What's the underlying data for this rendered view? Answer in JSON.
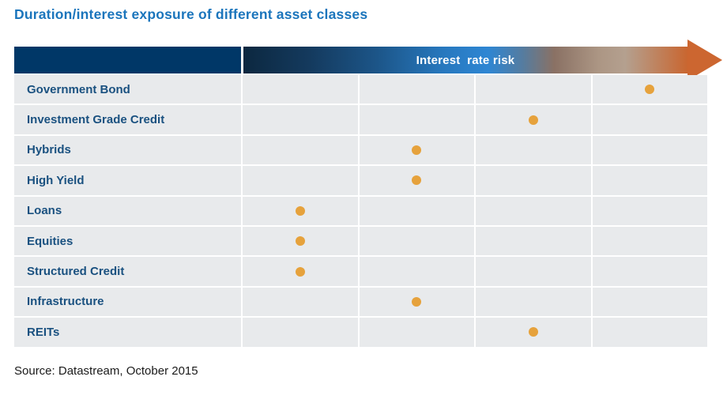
{
  "title": "Duration/interest exposure of different asset classes",
  "header": {
    "axis_label": "Interest  rate risk"
  },
  "source": "Source: Datastream, October 2015",
  "colors": {
    "title_blue": "#1B75BC",
    "navy_block": "#003767",
    "row_bg": "#E8EAEC",
    "label_blue": "#1A5180",
    "dot_orange": "#E6A23C",
    "arrow_orange": "#CC6630",
    "arrow_gradient_start": "#0C2840",
    "arrow_gradient_mid_blue": "#2E86D3",
    "arrow_gradient_tan": "#B4A08F"
  },
  "chart_data": {
    "type": "scatter",
    "title": "Duration/interest exposure of different asset classes",
    "xlabel": "Interest rate risk",
    "x_scale": "ordinal, 4 unlabeled columns, risk increases left to right",
    "columns": 4,
    "grid": true,
    "rows": [
      {
        "label": "Government Bond",
        "risk_level": 4
      },
      {
        "label": "Investment Grade Credit",
        "risk_level": 3
      },
      {
        "label": "Hybrids",
        "risk_level": 2
      },
      {
        "label": "High Yield",
        "risk_level": 2
      },
      {
        "label": "Loans",
        "risk_level": 1
      },
      {
        "label": "Equities",
        "risk_level": 1
      },
      {
        "label": "Structured Credit",
        "risk_level": 1
      },
      {
        "label": "Infrastructure",
        "risk_level": 2
      },
      {
        "label": "REITs",
        "risk_level": 3
      }
    ]
  }
}
